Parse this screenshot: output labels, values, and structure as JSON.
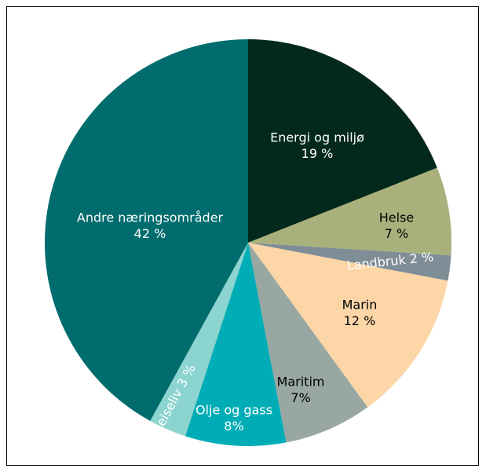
{
  "chart_data": {
    "type": "pie",
    "categories": [
      "Energi og miljø",
      "Helse",
      "Landbruk",
      "Marin",
      "Maritim",
      "Olje og gass",
      "Reiseliv",
      "Andre næringsområder"
    ],
    "values": [
      19,
      7,
      2,
      12,
      7,
      8,
      3,
      42
    ],
    "value_labels": [
      "19 %",
      "7 %",
      "2 %",
      "12 %",
      "7%",
      "8%",
      "3 %",
      "42 %"
    ],
    "colors": [
      "#03291c",
      "#a8b17b",
      "#7f8d97",
      "#fdd6a8",
      "#98a7a1",
      "#00adb6",
      "#8cd4cf",
      "#006c6d"
    ]
  }
}
